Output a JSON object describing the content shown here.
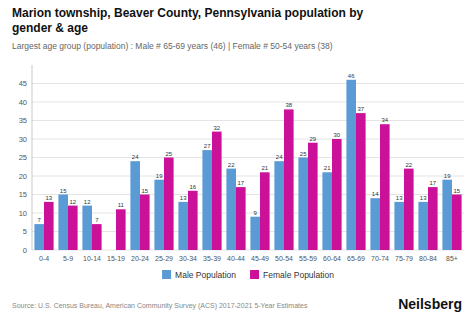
{
  "chart_data": {
    "type": "bar",
    "title": "Marion township, Beaver County, Pennsylvania population by\ngender & age",
    "subtitle": "Largest age group (population) : Male # 65-69 years (46) | Female # 50-54 years (38)",
    "source": "Source: U.S. Census Bureau, American Community Survey (ACS) 2017-2021 5-Year Estimates",
    "brand": "Neilsberg",
    "categories": [
      "0-4",
      "5-9",
      "10-14",
      "15-19",
      "20-24",
      "25-29",
      "30-34",
      "35-39",
      "40-44",
      "45-49",
      "50-54",
      "55-59",
      "60-64",
      "65-69",
      "70-74",
      "75-79",
      "80-84",
      "85+"
    ],
    "series": [
      {
        "name": "Male Population",
        "color": "#5b9bd5",
        "values": [
          7,
          15,
          12,
          0,
          24,
          19,
          13,
          27,
          22,
          9,
          24,
          25,
          21,
          46,
          14,
          13,
          13,
          19
        ]
      },
      {
        "name": "Female Population",
        "color": "#cc1199",
        "values": [
          13,
          12,
          7,
          11,
          15,
          25,
          16,
          32,
          17,
          21,
          38,
          29,
          30,
          37,
          34,
          22,
          17,
          15
        ]
      }
    ],
    "ylim": [
      0,
      50
    ],
    "yticks": [
      0,
      5,
      10,
      15,
      20,
      25,
      30,
      35,
      40,
      45
    ],
    "grid": true,
    "legend": "bottom",
    "data_labels": true
  }
}
